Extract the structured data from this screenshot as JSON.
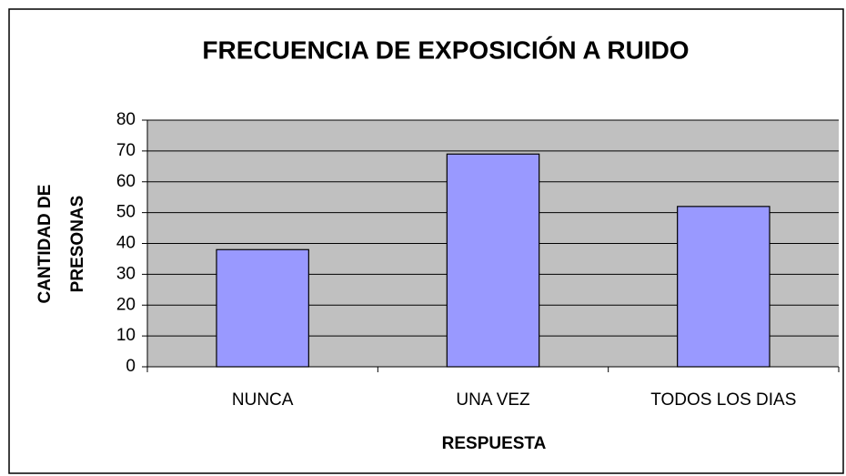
{
  "chart_data": {
    "type": "bar",
    "title": "FRECUENCIA DE EXPOSICIÓN A RUIDO",
    "x_label": "RESPUESTA",
    "y_label": [
      "CANTIDAD DE",
      "PRESONAS"
    ],
    "categories": [
      "NUNCA",
      "UNA VEZ",
      "TODOS LOS DIAS"
    ],
    "values": [
      38,
      69,
      52
    ],
    "color": "#9999ff",
    "ylim": [
      0,
      80
    ],
    "yticks": [
      0,
      10,
      20,
      30,
      40,
      50,
      60,
      70,
      80
    ],
    "grid": true
  }
}
